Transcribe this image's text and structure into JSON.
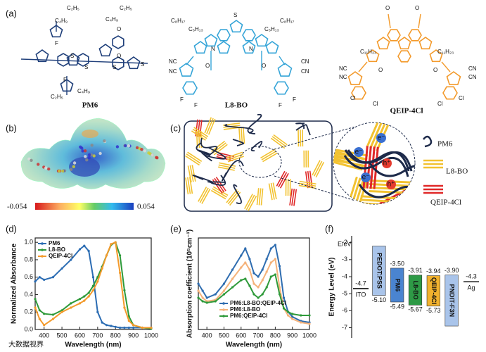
{
  "panels": {
    "a": "(a)",
    "b": "(b)",
    "c": "(c)",
    "d": "(d)",
    "e": "(e)",
    "f": "(f)"
  },
  "structures": [
    {
      "name": "PM6",
      "atoms": [
        "C₂H₅",
        "C₄H₉",
        "C₂H₅",
        "C₄H₉",
        "F",
        "S",
        "S",
        "S",
        "O",
        "O",
        "S",
        "F",
        "C₂H₅",
        "C₄H₉"
      ]
    },
    {
      "name": "L8-BO",
      "atoms": [
        "C₈H₁₇",
        "C₈H₁₇",
        "C₆H₁₃",
        "C₆H₁₃",
        "N",
        "S",
        "N",
        "NC",
        "CN",
        "NC",
        "CN",
        "O",
        "O",
        "F",
        "F",
        "F",
        "F"
      ]
    },
    {
      "name": "QEIP-4Cl",
      "atoms": [
        "O",
        "O",
        "C₁₁H₂₃",
        "C₁₁H₂₃",
        "NC",
        "CN",
        "NC",
        "CN",
        "O",
        "O",
        "Cl",
        "Cl",
        "Cl",
        "Cl"
      ]
    }
  ],
  "esp": {
    "min": -0.054,
    "max": 0.054
  },
  "morphology": {
    "legend": [
      "PM6",
      "L8-BO",
      "QEIP-4Cl"
    ],
    "electron": "e⁻",
    "hole": "h⁺"
  },
  "chart_data": [
    {
      "type": "line",
      "xlabel": "Wavelength (nm)",
      "ylabel": "Normalized Absorbance",
      "x": [
        350,
        375,
        400,
        450,
        500,
        550,
        600,
        625,
        650,
        675,
        700,
        725,
        750,
        775,
        800,
        825,
        850,
        875,
        900,
        950,
        1000
      ],
      "series": [
        {
          "name": "PM6",
          "color": "#2b6cb3",
          "values": [
            0.55,
            0.6,
            0.57,
            0.6,
            0.7,
            0.8,
            0.92,
            0.96,
            0.9,
            0.6,
            0.2,
            0.08,
            0.05,
            0.04,
            0.03,
            0.02,
            0.02,
            0.02,
            0.02,
            0.02,
            0.02
          ]
        },
        {
          "name": "L8-BO",
          "color": "#2e9a3a",
          "values": [
            0.35,
            0.22,
            0.18,
            0.17,
            0.22,
            0.3,
            0.35,
            0.38,
            0.42,
            0.5,
            0.6,
            0.72,
            0.85,
            0.97,
            1.0,
            0.85,
            0.45,
            0.15,
            0.05,
            0.02,
            0.01
          ]
        },
        {
          "name": "QEIP-4Cl",
          "color": "#f39a2b",
          "values": [
            0.25,
            0.12,
            0.05,
            0.12,
            0.2,
            0.25,
            0.3,
            0.33,
            0.38,
            0.45,
            0.55,
            0.7,
            0.85,
            0.98,
            1.0,
            0.65,
            0.25,
            0.1,
            0.05,
            0.02,
            0.02
          ]
        }
      ],
      "xlim": [
        350,
        1000
      ],
      "xticks": [
        400,
        500,
        600,
        700,
        800,
        900,
        1000
      ],
      "ylim": [
        0,
        1.05
      ],
      "yticks": [
        {
          "value": 0,
          "label": "0.0"
        },
        0.2,
        0.4,
        0.6,
        0.8,
        {
          "value": 1,
          "label": "1.0"
        }
      ],
      "legend": "upper left"
    },
    {
      "type": "line",
      "xlabel": "Wavelength (nm)",
      "ylabel": "Absorption coefficient (10⁵cm⁻¹)",
      "x": [
        350,
        375,
        400,
        450,
        500,
        550,
        600,
        625,
        650,
        675,
        700,
        725,
        750,
        775,
        800,
        825,
        850,
        875,
        900,
        950,
        1000
      ],
      "series": [
        {
          "name": "PM6:L8-BO:QEIP-4Cl",
          "color": "#2f6db0",
          "values": [
            0.65,
            0.55,
            0.45,
            0.5,
            0.65,
            0.85,
            1.05,
            1.15,
            1.0,
            0.8,
            0.75,
            0.85,
            1.0,
            1.15,
            1.2,
            0.9,
            0.45,
            0.25,
            0.18,
            0.12,
            0.1
          ]
        },
        {
          "name": "PM6:L8-BO",
          "color": "#f5b27a",
          "values": [
            0.55,
            0.45,
            0.4,
            0.42,
            0.55,
            0.72,
            0.88,
            0.95,
            0.85,
            0.65,
            0.6,
            0.7,
            0.82,
            0.95,
            1.0,
            0.6,
            0.3,
            0.2,
            0.15,
            0.1,
            0.08
          ]
        },
        {
          "name": "PM6:QEIP-4Cl",
          "color": "#2f9a3a",
          "values": [
            0.45,
            0.4,
            0.38,
            0.4,
            0.5,
            0.6,
            0.7,
            0.72,
            0.62,
            0.5,
            0.45,
            0.5,
            0.6,
            0.75,
            0.78,
            0.5,
            0.3,
            0.25,
            0.22,
            0.2,
            0.2
          ]
        }
      ],
      "xlim": [
        350,
        1000
      ],
      "xticks": [
        400,
        500,
        600,
        700,
        800,
        900,
        1000
      ],
      "ylim": [
        0,
        1.3
      ],
      "yticks": [],
      "legend": "lower center"
    },
    {
      "type": "floatbar",
      "ylabel": "Energy Level (eV)",
      "unit_label": "E/eV",
      "categories": [
        "PEDOT:PSS",
        "PM6",
        "L8-BO",
        "QEIP-4Cl",
        "PNDIT-F3N"
      ],
      "colors": [
        "#a9c4ea",
        "#4a84d0",
        "#2e9a46",
        "#f2b22e",
        "#a9c4ea"
      ],
      "top": [
        -2.2,
        -3.5,
        -3.91,
        -3.94,
        -3.9
      ],
      "top_labels": [
        null,
        "-3.50",
        "-3.91",
        "-3.94",
        "-3.90"
      ],
      "bottom": [
        -5.1,
        -5.49,
        -5.67,
        -5.73,
        -6.9
      ],
      "bottom_labels": [
        "-5.10",
        "-5.49",
        "-5.67",
        "-5.73",
        null
      ],
      "electrodes": [
        {
          "name": "ITO",
          "value": -4.7
        },
        {
          "name": "Ag",
          "value": -4.3
        }
      ],
      "ylim": [
        -1.6,
        -7.6
      ],
      "yticks": [
        -2,
        -3,
        -4,
        -5,
        -6,
        -7
      ]
    }
  ],
  "watermark": "大数据视界"
}
